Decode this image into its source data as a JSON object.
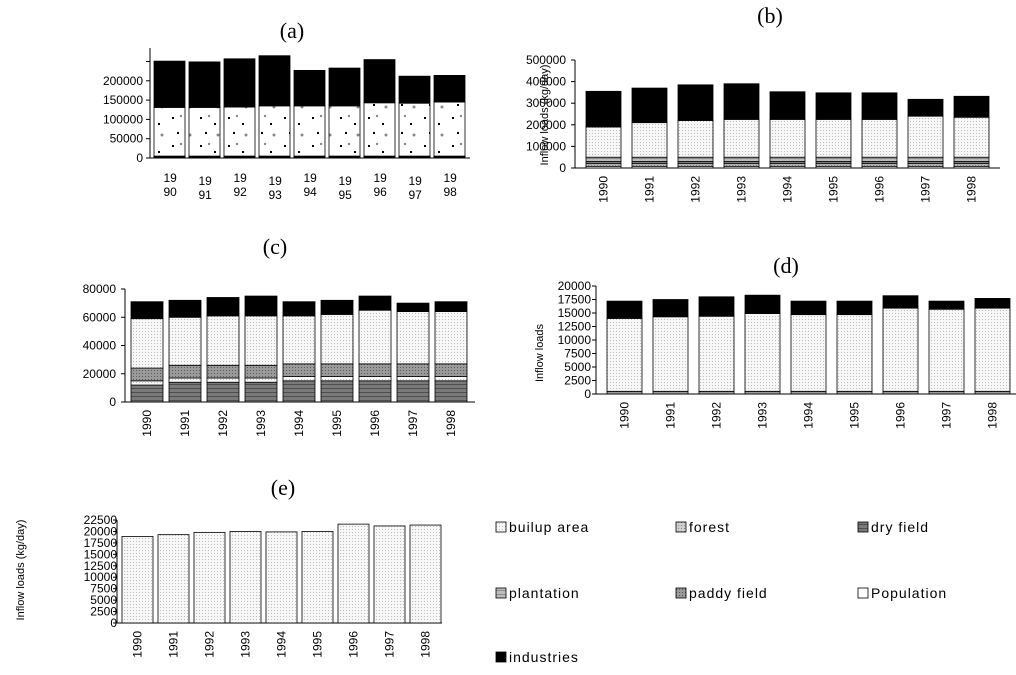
{
  "colors": {
    "builup_area": "#d6d6d6",
    "forest": "#c2c2c2",
    "dry_field": "#6e6e6e",
    "plantation": "#b4b4b4",
    "paddy_field": "#8c8c8c",
    "population": "#f5f5f5",
    "industries": "#000000"
  },
  "legend": [
    {
      "key": "builup_area",
      "label": "builup area"
    },
    {
      "key": "forest",
      "label": "forest"
    },
    {
      "key": "dry_field",
      "label": "dry field"
    },
    {
      "key": "plantation",
      "label": "plantation"
    },
    {
      "key": "paddy_field",
      "label": "paddy field"
    },
    {
      "key": "population",
      "label": "Population"
    },
    {
      "key": "industries",
      "label": "industries"
    }
  ],
  "chart_data": [
    {
      "id": "a",
      "type": "bar",
      "stacked": true,
      "title": "(a)",
      "ylabel": "",
      "ylim": [
        0,
        285000
      ],
      "ticks": [
        0,
        50000,
        100000,
        150000,
        200000
      ],
      "tick_labels": [
        "0",
        "50000",
        "100000",
        "150000",
        "200000"
      ],
      "categories": [
        "1990",
        "1991",
        "1992",
        "1993",
        "1994",
        "1995",
        "1996",
        "1997",
        "1998"
      ],
      "category_labels": [
        [
          "19",
          "90"
        ],
        [
          "19",
          "91"
        ],
        [
          "19",
          "92"
        ],
        [
          "19",
          "93"
        ],
        [
          "19",
          "94"
        ],
        [
          "19",
          "95"
        ],
        [
          "19",
          "96"
        ],
        [
          "19",
          "97"
        ],
        [
          "19",
          "98"
        ]
      ],
      "series": [
        {
          "key": "builup_area",
          "values": [
            2000,
            2000,
            2000,
            2000,
            2000,
            2000,
            2000,
            2000,
            2000
          ]
        },
        {
          "key": "forest",
          "values": [
            1500,
            1500,
            1500,
            1500,
            1500,
            1500,
            1500,
            1500,
            1500
          ]
        },
        {
          "key": "dry_field",
          "values": [
            1500,
            1500,
            1500,
            1500,
            1500,
            1500,
            1500,
            1500,
            1500
          ]
        },
        {
          "key": "population",
          "values": [
            126000,
            126000,
            127000,
            130000,
            130000,
            130000,
            138000,
            137000,
            140000
          ]
        },
        {
          "key": "industries",
          "values": [
            120000,
            118000,
            125000,
            130000,
            92000,
            98000,
            112000,
            70000,
            69000
          ]
        }
      ]
    },
    {
      "id": "b",
      "type": "bar",
      "stacked": true,
      "title": "(b)",
      "ylabel": "Inflow loads (kg/day)",
      "ylim": [
        0,
        500000
      ],
      "ticks": [
        0,
        100000,
        200000,
        300000,
        400000,
        500000
      ],
      "tick_labels": [
        "0",
        "100000",
        "200000",
        "300000",
        "400000",
        "500000"
      ],
      "categories": [
        "1990",
        "1991",
        "1992",
        "1993",
        "1994",
        "1995",
        "1996",
        "1997",
        "1998"
      ],
      "series": [
        {
          "key": "builup_area",
          "values": [
            8000,
            8000,
            8000,
            8000,
            8000,
            8000,
            8000,
            8000,
            8000
          ]
        },
        {
          "key": "forest",
          "values": [
            12000,
            12000,
            12000,
            12000,
            12000,
            12000,
            12000,
            12000,
            12000
          ]
        },
        {
          "key": "dry_field",
          "values": [
            10000,
            10000,
            10000,
            10000,
            10000,
            10000,
            10000,
            10000,
            10000
          ]
        },
        {
          "key": "plantation",
          "values": [
            20000,
            20000,
            20000,
            20000,
            20000,
            20000,
            20000,
            20000,
            20000
          ]
        },
        {
          "key": "population",
          "values": [
            140000,
            160000,
            170000,
            175000,
            175000,
            175000,
            175000,
            190000,
            185000
          ]
        },
        {
          "key": "industries",
          "values": [
            165000,
            160000,
            165000,
            165000,
            128000,
            123000,
            123000,
            78000,
            97000
          ]
        }
      ]
    },
    {
      "id": "c",
      "type": "bar",
      "stacked": true,
      "title": "(c)",
      "ylabel": "",
      "ylim": [
        0,
        80000
      ],
      "ticks": [
        0,
        20000,
        40000,
        60000,
        80000
      ],
      "tick_labels": [
        "0",
        "20000",
        "40000",
        "60000",
        "80000"
      ],
      "categories": [
        "1990",
        "1991",
        "1992",
        "1993",
        "1994",
        "1995",
        "1996",
        "1997",
        "1998"
      ],
      "series": [
        {
          "key": "dry_field",
          "values": [
            12000,
            14000,
            14000,
            14000,
            15000,
            15000,
            15000,
            15000,
            15000
          ]
        },
        {
          "key": "builup_area",
          "values": [
            3000,
            3000,
            3000,
            3000,
            3000,
            3000,
            3000,
            3000,
            3000
          ]
        },
        {
          "key": "paddy_field",
          "values": [
            9000,
            9000,
            9000,
            9000,
            9000,
            9000,
            9000,
            9000,
            9000
          ]
        },
        {
          "key": "population",
          "values": [
            35000,
            34000,
            35000,
            35000,
            34000,
            35000,
            38000,
            37000,
            37000
          ]
        },
        {
          "key": "industries",
          "values": [
            12000,
            12000,
            13000,
            14000,
            10000,
            10000,
            10000,
            6000,
            7000
          ]
        }
      ]
    },
    {
      "id": "d",
      "type": "bar",
      "stacked": true,
      "title": "(d)",
      "ylabel": "Inflow loads",
      "ylim": [
        0,
        20000
      ],
      "ticks": [
        0,
        2500,
        5000,
        7500,
        10000,
        12500,
        15000,
        17500,
        20000
      ],
      "tick_labels": [
        "0",
        "2500",
        "5000",
        "7500",
        "10000",
        "12500",
        "15000",
        "17500",
        "20000"
      ],
      "categories": [
        "1990",
        "1991",
        "1992",
        "1993",
        "1994",
        "1995",
        "1996",
        "1997",
        "1998"
      ],
      "series": [
        {
          "key": "paddy_field",
          "values": [
            500,
            500,
            500,
            500,
            500,
            500,
            500,
            500,
            500
          ]
        },
        {
          "key": "population",
          "values": [
            13500,
            13800,
            13900,
            14400,
            14200,
            14200,
            15400,
            15200,
            15400
          ]
        },
        {
          "key": "industries",
          "values": [
            3200,
            3200,
            3600,
            3400,
            2500,
            2500,
            2300,
            1500,
            1800
          ]
        }
      ]
    },
    {
      "id": "e",
      "type": "bar",
      "stacked": true,
      "title": "(e)",
      "ylabel": "Inflow loads (kg/day)",
      "ylim": [
        0,
        22500
      ],
      "ticks": [
        0,
        2500,
        5000,
        7500,
        10000,
        12500,
        15000,
        17500,
        20000,
        22500
      ],
      "tick_labels": [
        "0",
        "2500",
        "5000",
        "7500",
        "10000",
        "12500",
        "15000",
        "17500",
        "20000",
        "22500"
      ],
      "categories": [
        "1990",
        "1991",
        "1992",
        "1993",
        "1994",
        "1995",
        "1996",
        "1997",
        "1998"
      ],
      "series": [
        {
          "key": "population",
          "values": [
            18900,
            19300,
            19800,
            20000,
            19900,
            20000,
            21600,
            21200,
            21400
          ]
        }
      ]
    }
  ]
}
